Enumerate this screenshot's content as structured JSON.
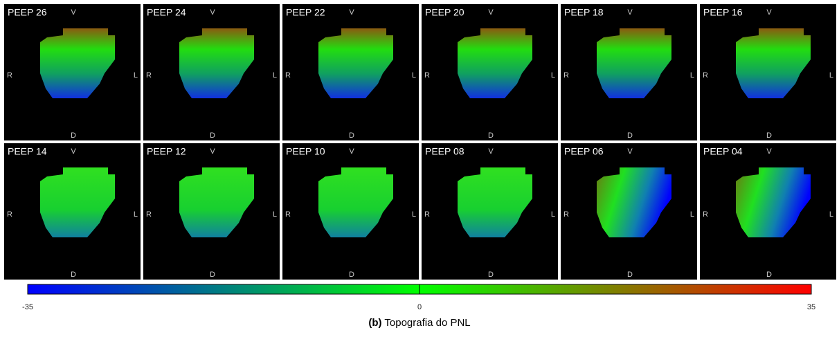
{
  "panels": [
    "PEEP 26",
    "PEEP 24",
    "PEEP 22",
    "PEEP 20",
    "PEEP 18",
    "PEEP 16",
    "PEEP 14",
    "PEEP 12",
    "PEEP 10",
    "PEEP 08",
    "PEEP 06",
    "PEEP 04"
  ],
  "orientation": {
    "top": "V",
    "left": "R",
    "right": "L",
    "bottom": "D"
  },
  "colorbar": {
    "lim": [
      -35,
      35
    ],
    "ticks": [
      -35,
      0,
      35
    ],
    "colors": [
      "#0000ff",
      "#00ff00",
      "#ff0000"
    ]
  },
  "caption": {
    "label": "(b)",
    "text": "Topografia do PNL"
  }
}
